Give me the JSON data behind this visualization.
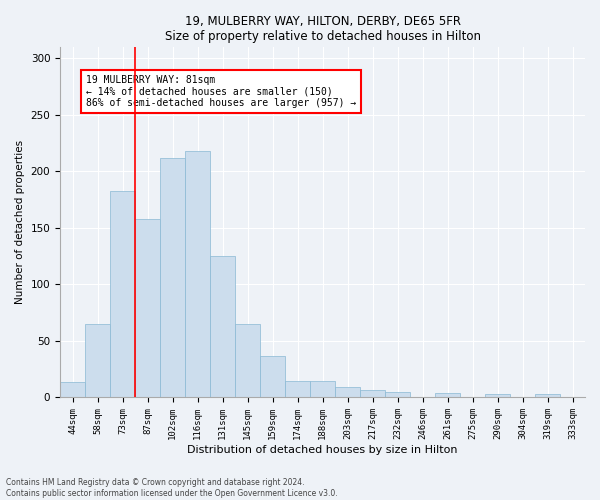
{
  "title1": "19, MULBERRY WAY, HILTON, DERBY, DE65 5FR",
  "title2": "Size of property relative to detached houses in Hilton",
  "xlabel": "Distribution of detached houses by size in Hilton",
  "ylabel": "Number of detached properties",
  "bar_labels": [
    "44sqm",
    "58sqm",
    "73sqm",
    "87sqm",
    "102sqm",
    "116sqm",
    "131sqm",
    "145sqm",
    "159sqm",
    "174sqm",
    "188sqm",
    "203sqm",
    "217sqm",
    "232sqm",
    "246sqm",
    "261sqm",
    "275sqm",
    "290sqm",
    "304sqm",
    "319sqm",
    "333sqm"
  ],
  "bar_values": [
    14,
    65,
    183,
    158,
    212,
    218,
    125,
    65,
    37,
    15,
    15,
    9,
    7,
    5,
    0,
    4,
    0,
    3,
    0,
    3,
    0
  ],
  "bar_color": "#ccdded",
  "bar_edge_color": "#89b8d4",
  "vline_color": "red",
  "vline_x_index": 2.5,
  "annotation_text": "19 MULBERRY WAY: 81sqm\n← 14% of detached houses are smaller (150)\n86% of semi-detached houses are larger (957) →",
  "annotation_box_color": "white",
  "annotation_box_edgecolor": "red",
  "ylim": [
    0,
    310
  ],
  "yticks": [
    0,
    50,
    100,
    150,
    200,
    250,
    300
  ],
  "footnote1": "Contains HM Land Registry data © Crown copyright and database right 2024.",
  "footnote2": "Contains public sector information licensed under the Open Government Licence v3.0.",
  "bg_color": "#eef2f7",
  "grid_color": "white"
}
